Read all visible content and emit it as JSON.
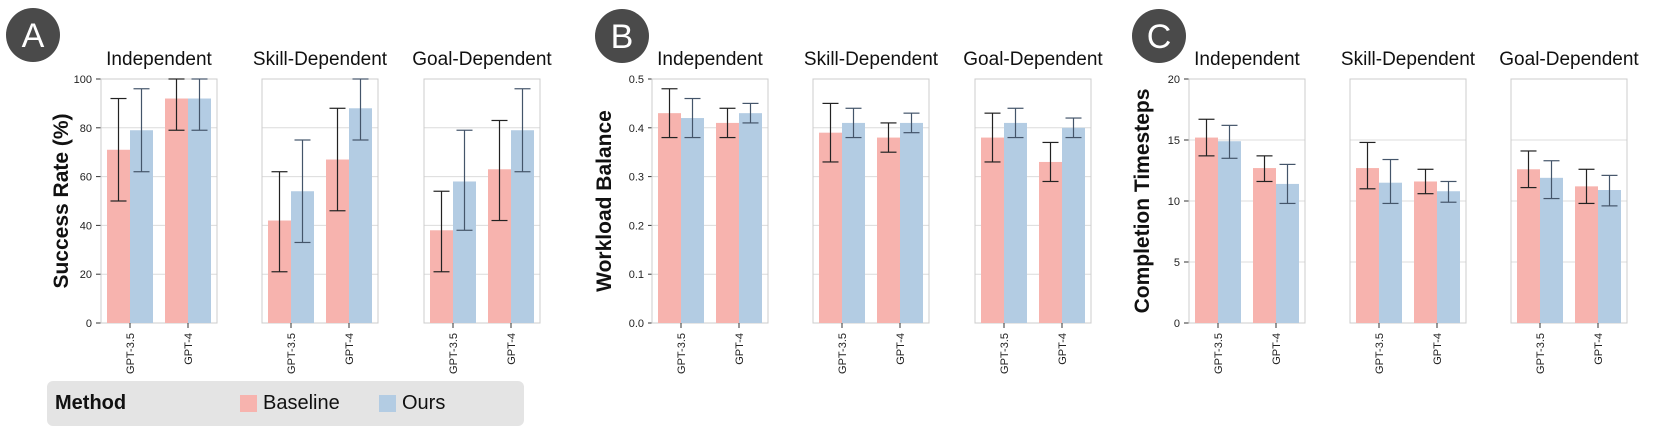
{
  "panel_letters": [
    "A",
    "B",
    "C"
  ],
  "legend": {
    "title": "Method",
    "items": [
      {
        "label": "Baseline",
        "color": "#f7b3ae"
      },
      {
        "label": "Ours",
        "color": "#b3cce3"
      }
    ]
  },
  "chart_data": [
    {
      "type": "bar",
      "panel": "A",
      "ylabel": "Success Rate (%)",
      "ylim": [
        0,
        100
      ],
      "yticks": [
        0,
        20,
        40,
        60,
        80,
        100
      ],
      "ytick_labels": [
        "0",
        "20",
        "40",
        "60",
        "80",
        "100"
      ],
      "categories": [
        "GPT-3.5",
        "GPT-4"
      ],
      "grid": true,
      "facets": [
        {
          "title": "Independent",
          "series": [
            {
              "name": "Baseline",
              "values": [
                71,
                92
              ],
              "err_low": [
                50,
                79
              ],
              "err_high": [
                92,
                100
              ]
            },
            {
              "name": "Ours",
              "values": [
                79,
                92
              ],
              "err_low": [
                62,
                79
              ],
              "err_high": [
                96,
                100
              ]
            }
          ]
        },
        {
          "title": "Skill-Dependent",
          "series": [
            {
              "name": "Baseline",
              "values": [
                42,
                67
              ],
              "err_low": [
                21,
                46
              ],
              "err_high": [
                62,
                88
              ]
            },
            {
              "name": "Ours",
              "values": [
                54,
                88
              ],
              "err_low": [
                33,
                75
              ],
              "err_high": [
                75,
                100
              ]
            }
          ]
        },
        {
          "title": "Goal-Dependent",
          "series": [
            {
              "name": "Baseline",
              "values": [
                38,
                63
              ],
              "err_low": [
                21,
                42
              ],
              "err_high": [
                54,
                83
              ]
            },
            {
              "name": "Ours",
              "values": [
                58,
                79
              ],
              "err_low": [
                38,
                62
              ],
              "err_high": [
                79,
                96
              ]
            }
          ]
        }
      ]
    },
    {
      "type": "bar",
      "panel": "B",
      "ylabel": "Workload Balance",
      "ylim": [
        0,
        0.5
      ],
      "yticks": [
        0,
        0.1,
        0.2,
        0.3,
        0.4,
        0.5
      ],
      "ytick_labels": [
        "0.0",
        "0.1",
        "0.2",
        "0.3",
        "0.4",
        "0.5"
      ],
      "categories": [
        "GPT-3.5",
        "GPT-4"
      ],
      "grid": true,
      "facets": [
        {
          "title": "Independent",
          "series": [
            {
              "name": "Baseline",
              "values": [
                0.43,
                0.41
              ],
              "err_low": [
                0.38,
                0.38
              ],
              "err_high": [
                0.48,
                0.44
              ]
            },
            {
              "name": "Ours",
              "values": [
                0.42,
                0.43
              ],
              "err_low": [
                0.38,
                0.41
              ],
              "err_high": [
                0.46,
                0.45
              ]
            }
          ]
        },
        {
          "title": "Skill-Dependent",
          "series": [
            {
              "name": "Baseline",
              "values": [
                0.39,
                0.38
              ],
              "err_low": [
                0.33,
                0.35
              ],
              "err_high": [
                0.45,
                0.41
              ]
            },
            {
              "name": "Ours",
              "values": [
                0.41,
                0.41
              ],
              "err_low": [
                0.38,
                0.39
              ],
              "err_high": [
                0.44,
                0.43
              ]
            }
          ]
        },
        {
          "title": "Goal-Dependent",
          "series": [
            {
              "name": "Baseline",
              "values": [
                0.38,
                0.33
              ],
              "err_low": [
                0.33,
                0.29
              ],
              "err_high": [
                0.43,
                0.37
              ]
            },
            {
              "name": "Ours",
              "values": [
                0.41,
                0.4
              ],
              "err_low": [
                0.38,
                0.38
              ],
              "err_high": [
                0.44,
                0.42
              ]
            }
          ]
        }
      ]
    },
    {
      "type": "bar",
      "panel": "C",
      "ylabel": "Completion Timesteps",
      "ylim": [
        0,
        20
      ],
      "yticks": [
        0,
        5,
        10,
        15,
        20
      ],
      "ytick_labels": [
        "0",
        "5",
        "10",
        "15",
        "20"
      ],
      "categories": [
        "GPT-3.5",
        "GPT-4"
      ],
      "grid": true,
      "facets": [
        {
          "title": "Independent",
          "series": [
            {
              "name": "Baseline",
              "values": [
                15.2,
                12.7
              ],
              "err_low": [
                13.7,
                11.6
              ],
              "err_high": [
                16.7,
                13.7
              ]
            },
            {
              "name": "Ours",
              "values": [
                14.9,
                11.4
              ],
              "err_low": [
                13.5,
                9.8
              ],
              "err_high": [
                16.2,
                13.0
              ]
            }
          ]
        },
        {
          "title": "Skill-Dependent",
          "series": [
            {
              "name": "Baseline",
              "values": [
                12.7,
                11.6
              ],
              "err_low": [
                11.0,
                10.6
              ],
              "err_high": [
                14.8,
                12.6
              ]
            },
            {
              "name": "Ours",
              "values": [
                11.5,
                10.8
              ],
              "err_low": [
                9.8,
                9.9
              ],
              "err_high": [
                13.4,
                11.6
              ]
            }
          ]
        },
        {
          "title": "Goal-Dependent",
          "series": [
            {
              "name": "Baseline",
              "values": [
                12.6,
                11.2
              ],
              "err_low": [
                11.1,
                9.8
              ],
              "err_high": [
                14.1,
                12.6
              ]
            },
            {
              "name": "Ours",
              "values": [
                11.9,
                10.9
              ],
              "err_low": [
                10.2,
                9.6
              ],
              "err_high": [
                13.3,
                12.1
              ]
            }
          ]
        }
      ]
    }
  ]
}
